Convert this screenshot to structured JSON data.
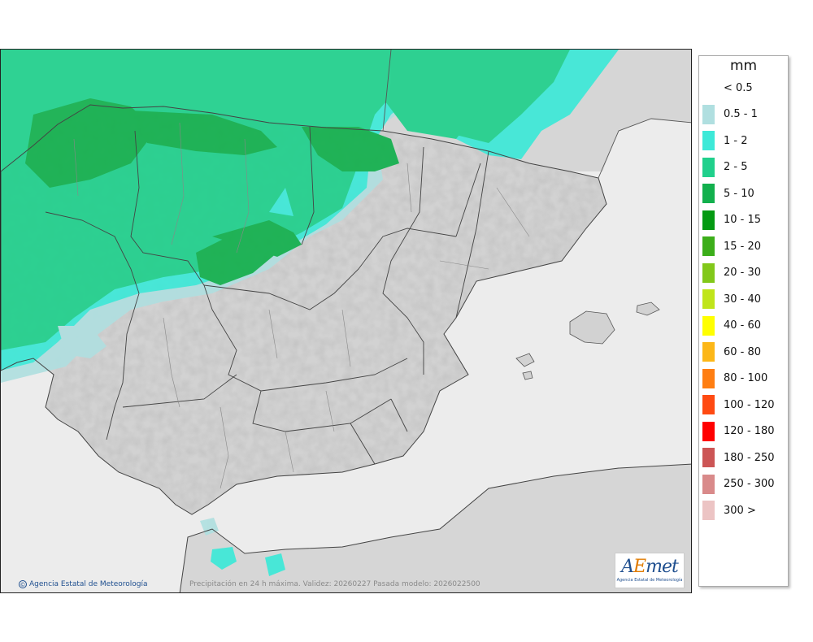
{
  "map": {
    "credit": "Agencia Estatal de Meteorología",
    "credit_symbol": "©",
    "caption": "Precipitación en 24 h máxima. Validez: 20260227 Pasada modelo: 2026022500",
    "logo": {
      "word_a": "A",
      "word_e": "E",
      "word_rest": "met",
      "subtitle": "Agencia Estatal de Meteorología"
    },
    "colors": {
      "sea": "#ececec",
      "land": "#d3d3d3",
      "border": "#555555"
    }
  },
  "legend": {
    "unit": "mm",
    "items": [
      {
        "label": "< 0.5",
        "color": ""
      },
      {
        "label": "0.5 - 1",
        "color": "#b0dfe0"
      },
      {
        "label": "1 - 2",
        "color": "#3de9d8"
      },
      {
        "label": "2 - 5",
        "color": "#20d08c"
      },
      {
        "label": "5 - 10",
        "color": "#12b04d"
      },
      {
        "label": "10 - 15",
        "color": "#049a12"
      },
      {
        "label": "15 - 20",
        "color": "#3cae1a"
      },
      {
        "label": "20 - 30",
        "color": "#82c81a"
      },
      {
        "label": "30 - 40",
        "color": "#c0e51a"
      },
      {
        "label": "40 - 60",
        "color": "#ffff00"
      },
      {
        "label": "60 - 80",
        "color": "#fcb718"
      },
      {
        "label": "80 - 100",
        "color": "#ff7e12"
      },
      {
        "label": "100 - 120",
        "color": "#ff4a12"
      },
      {
        "label": "120 - 180",
        "color": "#ff0000"
      },
      {
        "label": "180 - 250",
        "color": "#cc5555"
      },
      {
        "label": "250 - 300",
        "color": "#d98a8a"
      },
      {
        "label": "300 >",
        "color": "#ecc4c4"
      }
    ]
  }
}
